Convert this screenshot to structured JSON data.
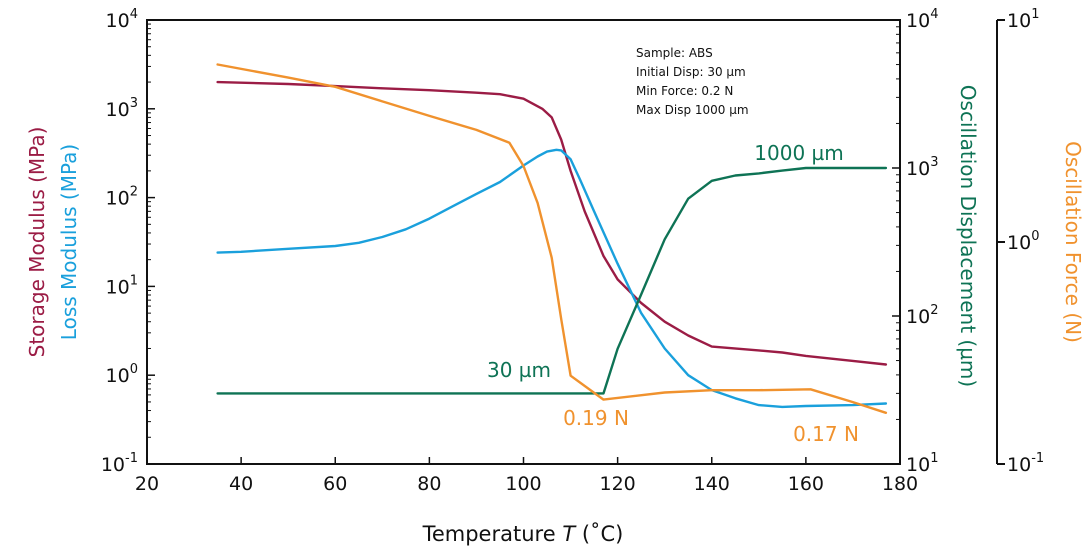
{
  "chart_data": {
    "type": "line",
    "xlabel": "Temperature",
    "xlabel_symbol": "T",
    "xlabel_unit": "(˚C)",
    "xlim": [
      20,
      180
    ],
    "xticks": [
      20,
      40,
      60,
      80,
      100,
      120,
      140,
      160,
      180
    ],
    "left_axis": {
      "scale": "log",
      "ylim": [
        0.1,
        10000
      ],
      "tick_labels": [
        {
          "base": "10",
          "exp": "4",
          "value": 10000
        },
        {
          "base": "10",
          "exp": "3",
          "value": 1000
        },
        {
          "base": "10",
          "exp": "2",
          "value": 100
        },
        {
          "base": "10",
          "exp": "1",
          "value": 10
        },
        {
          "base": "10",
          "exp": "0",
          "value": 1
        },
        {
          "base": "10",
          "exp": "-1",
          "value": 0.1
        }
      ],
      "label_line1": "Storage Modulus (MPa)",
      "label_line2": "Loss Modulus (MPa)",
      "label_line1_color": "#9b1c45",
      "label_line2_color": "#1aa0dc"
    },
    "right_axis_1": {
      "scale": "log",
      "ylim": [
        10,
        10000
      ],
      "tick_labels": [
        {
          "base": "10",
          "exp": "4",
          "value": 10000
        },
        {
          "base": "10",
          "exp": "3",
          "value": 1000
        },
        {
          "base": "10",
          "exp": "2",
          "value": 100
        },
        {
          "base": "10",
          "exp": "1",
          "value": 10
        }
      ],
      "label": "Oscillation Displacement (µm)",
      "color": "#0e7355"
    },
    "right_axis_2": {
      "scale": "log",
      "ylim": [
        0.1,
        10
      ],
      "tick_labels": [
        {
          "base": "10",
          "exp": "1",
          "value": 10
        },
        {
          "base": "10",
          "exp": "0",
          "value": 1
        },
        {
          "base": "10",
          "exp": "-1",
          "value": 0.1
        }
      ],
      "label": "Oscillation Force (N)",
      "color": "#f0922e"
    },
    "series": [
      {
        "axis": "left",
        "color": "#9b1c45",
        "x": [
          35,
          50,
          60,
          70,
          80,
          90,
          95,
          100,
          104,
          106,
          108,
          110,
          113,
          117,
          120,
          125,
          130,
          135,
          140,
          150,
          155,
          160,
          170,
          177
        ],
        "y": [
          2000,
          1900,
          1800,
          1700,
          1620,
          1520,
          1460,
          1300,
          1000,
          800,
          450,
          200,
          70,
          22,
          12,
          6.5,
          4,
          2.8,
          2.1,
          1.9,
          1.8,
          1.65,
          1.45,
          1.32
        ]
      },
      {
        "axis": "left",
        "color": "#1aa0dc",
        "x": [
          35,
          40,
          50,
          60,
          65,
          70,
          75,
          80,
          85,
          90,
          95,
          100,
          103,
          105,
          107,
          108,
          110,
          112,
          115,
          120,
          125,
          130,
          135,
          140,
          145,
          150,
          155,
          160,
          170,
          177
        ],
        "y": [
          24,
          24.5,
          26.5,
          28.5,
          31,
          36,
          44,
          58,
          80,
          110,
          150,
          230,
          290,
          330,
          345,
          340,
          270,
          160,
          70,
          18,
          5,
          2,
          1,
          0.68,
          0.55,
          0.46,
          0.44,
          0.45,
          0.46,
          0.48
        ]
      },
      {
        "axis": "right1",
        "color": "#0e7355",
        "x": [
          35,
          117,
          120,
          125,
          130,
          135,
          140,
          145,
          150,
          155,
          160,
          165,
          170,
          177
        ],
        "y": [
          30,
          30,
          60,
          140,
          330,
          620,
          820,
          890,
          920,
          960,
          1000,
          1000,
          1000,
          1000
        ]
      },
      {
        "axis": "right2",
        "color": "#f0922e",
        "x": [
          35,
          50,
          60,
          70,
          80,
          90,
          97,
          100,
          103,
          106,
          108,
          110,
          117,
          130,
          140,
          150,
          161,
          170,
          177
        ],
        "y": [
          6.3,
          5.5,
          5.0,
          4.3,
          3.7,
          3.2,
          2.8,
          2.2,
          1.5,
          0.85,
          0.45,
          0.25,
          0.195,
          0.21,
          0.215,
          0.215,
          0.217,
          0.19,
          0.17
        ]
      }
    ],
    "annotations": {
      "info": [
        "Sample: ABS",
        "Initial Disp: 30 µm",
        "Min Force: 0.2 N",
        "Max Disp 1000 µm"
      ],
      "disp_30": "30 µm",
      "disp_1000": "1000 µm",
      "force_019": "0.19 N",
      "force_017": "0.17 N"
    }
  }
}
